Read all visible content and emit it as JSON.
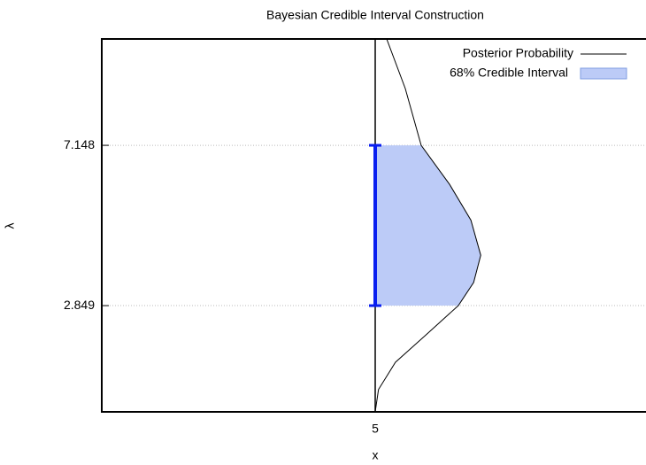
{
  "chart_data": {
    "type": "line",
    "title": "Bayesian Credible Interval Construction",
    "xlabel": "x",
    "ylabel": "λ",
    "xlim": [
      0,
      10
    ],
    "ylim": [
      0,
      10
    ],
    "xticks": [
      5
    ],
    "yticks": [
      2.849,
      7.148
    ],
    "grid": true,
    "legend": "top-right",
    "series": [
      {
        "name": "Posterior Probability",
        "color": "#000000",
        "x": [
          5.0,
          5.06,
          5.37,
          5.91,
          6.52,
          6.8,
          6.93,
          6.75,
          6.36,
          5.84,
          5.55,
          5.21
        ],
        "values": [
          0,
          0.6,
          1.33,
          2.04,
          2.85,
          3.47,
          4.2,
          5.14,
          6.1,
          7.15,
          8.67,
          10
        ]
      }
    ],
    "interval": {
      "name": "68% Credible Interval",
      "color": "#bccbf7",
      "bar_color": "#0a1ff0",
      "lower": 2.849,
      "upper": 7.148
    }
  }
}
